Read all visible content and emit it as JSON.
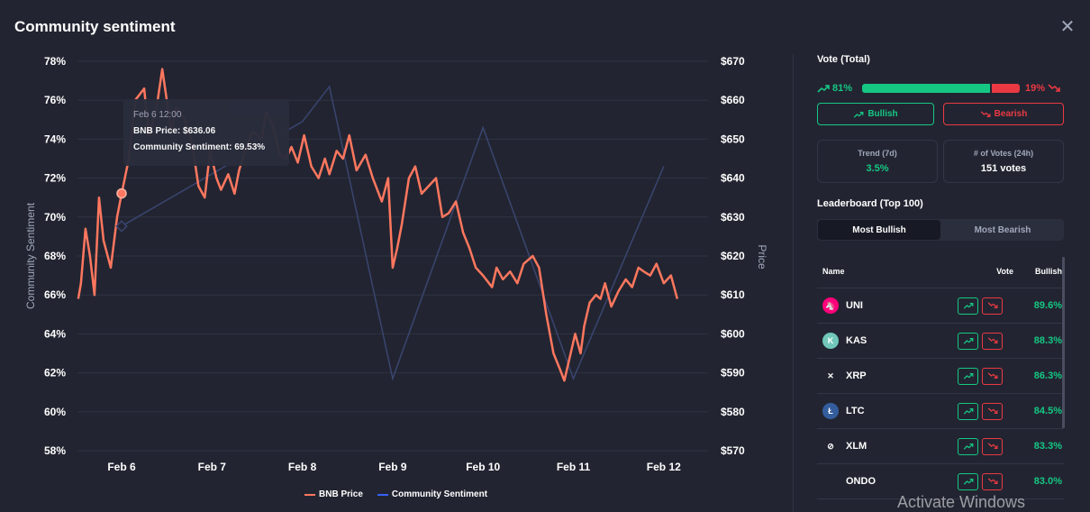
{
  "header": {
    "title": "Community sentiment",
    "close_label": "✕"
  },
  "tooltip": {
    "date": "Feb 6 12:00",
    "price_line": "BNB Price: $636.06",
    "sentiment_line": "Community Sentiment: 69.53%"
  },
  "legend": {
    "price": "BNB Price",
    "sentiment": "Community Sentiment"
  },
  "side": {
    "vote_title": "Vote (Total)",
    "bull_pct": "81%",
    "bear_pct": "19%",
    "bull_share": 0.81,
    "bullish_btn": "Bullish",
    "bearish_btn": "Bearish",
    "trend_label": "Trend (7d)",
    "trend_value": "3.5%",
    "votes_label": "# of Votes (24h)",
    "votes_value": "151 votes",
    "leaderboard_title": "Leaderboard (Top 100)",
    "tabs": [
      "Most Bullish",
      "Most Bearish"
    ],
    "cols": {
      "name": "Name",
      "vote": "Vote",
      "bullish": "Bullish"
    },
    "rows": [
      {
        "name": "UNI",
        "pct": "89.6%",
        "icon": "uni-icon",
        "color": "#ff007a",
        "glyph": "🦄"
      },
      {
        "name": "KAS",
        "pct": "88.3%",
        "icon": "kas-icon",
        "color": "#70c7ba",
        "glyph": "K"
      },
      {
        "name": "XRP",
        "pct": "86.3%",
        "icon": "xrp-icon",
        "color": "#222531",
        "glyph": "✕"
      },
      {
        "name": "LTC",
        "pct": "84.5%",
        "icon": "ltc-icon",
        "color": "#345d9d",
        "glyph": "Ł"
      },
      {
        "name": "XLM",
        "pct": "83.3%",
        "icon": "xlm-icon",
        "color": "#222531",
        "glyph": "⊘"
      },
      {
        "name": "ONDO",
        "pct": "83.0%",
        "icon": "ondo-icon",
        "color": "#222531",
        "glyph": ""
      }
    ]
  },
  "watermark": "Activate Windows",
  "colors": {
    "green": "#16c784",
    "red": "#ea3943",
    "price_line": "#ff775f",
    "sentiment_line": "#3861fb"
  },
  "chart_data": {
    "type": "line",
    "y_left": {
      "label": "Community Sentiment",
      "ticks": [
        "78%",
        "76%",
        "74%",
        "72%",
        "70%",
        "68%",
        "66%",
        "64%",
        "62%",
        "60%",
        "58%"
      ],
      "range": [
        58,
        78
      ]
    },
    "y_right": {
      "label": "Price",
      "ticks": [
        "$670",
        "$660",
        "$650",
        "$640",
        "$630",
        "$620",
        "$610",
        "$600",
        "$590",
        "$580",
        "$570"
      ],
      "range": [
        570,
        670
      ]
    },
    "x_ticks": [
      "Feb 6",
      "Feb 7",
      "Feb 8",
      "Feb 9",
      "Feb 10",
      "Feb 11",
      "Feb 12"
    ],
    "series": [
      {
        "name": "Community Sentiment",
        "axis": "left",
        "points": [
          [
            0,
            69.53
          ],
          [
            2.0,
            74.9
          ],
          [
            2.3,
            76.7
          ],
          [
            3.0,
            61.7
          ],
          [
            4.0,
            74.6
          ],
          [
            5.0,
            61.7
          ],
          [
            6.0,
            72.6
          ]
        ]
      },
      {
        "name": "BNB Price",
        "axis": "right",
        "points": [
          [
            -0.48,
            609
          ],
          [
            -0.45,
            613
          ],
          [
            -0.4,
            627
          ],
          [
            -0.35,
            620
          ],
          [
            -0.3,
            610
          ],
          [
            -0.25,
            635
          ],
          [
            -0.2,
            624
          ],
          [
            -0.12,
            617
          ],
          [
            -0.05,
            630
          ],
          [
            0,
            636
          ],
          [
            0.08,
            645
          ],
          [
            0.15,
            660
          ],
          [
            0.25,
            663
          ],
          [
            0.3,
            651
          ],
          [
            0.38,
            657
          ],
          [
            0.45,
            668
          ],
          [
            0.55,
            652
          ],
          [
            0.6,
            658
          ],
          [
            0.7,
            655
          ],
          [
            0.78,
            649
          ],
          [
            0.85,
            638
          ],
          [
            0.92,
            635
          ],
          [
            0.98,
            647
          ],
          [
            1.05,
            640
          ],
          [
            1.1,
            637
          ],
          [
            1.18,
            641
          ],
          [
            1.25,
            636
          ],
          [
            1.3,
            642
          ],
          [
            1.38,
            648
          ],
          [
            1.45,
            652
          ],
          [
            1.55,
            650
          ],
          [
            1.6,
            657
          ],
          [
            1.68,
            653
          ],
          [
            1.75,
            646
          ],
          [
            1.82,
            645
          ],
          [
            1.88,
            648
          ],
          [
            1.95,
            644
          ],
          [
            2.02,
            651
          ],
          [
            2.1,
            643
          ],
          [
            2.18,
            640
          ],
          [
            2.25,
            645
          ],
          [
            2.3,
            641
          ],
          [
            2.38,
            647
          ],
          [
            2.45,
            645
          ],
          [
            2.52,
            651
          ],
          [
            2.6,
            642
          ],
          [
            2.7,
            646
          ],
          [
            2.78,
            640
          ],
          [
            2.88,
            634
          ],
          [
            2.95,
            640
          ],
          [
            3.0,
            617
          ],
          [
            3.05,
            622
          ],
          [
            3.1,
            628
          ],
          [
            3.18,
            640
          ],
          [
            3.25,
            643
          ],
          [
            3.32,
            636
          ],
          [
            3.4,
            638
          ],
          [
            3.48,
            640
          ],
          [
            3.55,
            630
          ],
          [
            3.62,
            631
          ],
          [
            3.7,
            634
          ],
          [
            3.78,
            626
          ],
          [
            3.85,
            622
          ],
          [
            3.92,
            617
          ],
          [
            4.0,
            615
          ],
          [
            4.1,
            612
          ],
          [
            4.15,
            617
          ],
          [
            4.22,
            614
          ],
          [
            4.3,
            616
          ],
          [
            4.38,
            613
          ],
          [
            4.45,
            618
          ],
          [
            4.55,
            620
          ],
          [
            4.62,
            617
          ],
          [
            4.7,
            605
          ],
          [
            4.78,
            595
          ],
          [
            4.85,
            591
          ],
          [
            4.9,
            588
          ],
          [
            4.95,
            593
          ],
          [
            5.02,
            600
          ],
          [
            5.08,
            595
          ],
          [
            5.12,
            602
          ],
          [
            5.18,
            608
          ],
          [
            5.25,
            610
          ],
          [
            5.3,
            609
          ],
          [
            5.35,
            613
          ],
          [
            5.42,
            607
          ],
          [
            5.5,
            611
          ],
          [
            5.58,
            614
          ],
          [
            5.65,
            612
          ],
          [
            5.72,
            617
          ],
          [
            5.78,
            616
          ],
          [
            5.85,
            615
          ],
          [
            5.92,
            618
          ],
          [
            6.0,
            613
          ],
          [
            6.08,
            615
          ],
          [
            6.15,
            609
          ]
        ]
      }
    ]
  }
}
